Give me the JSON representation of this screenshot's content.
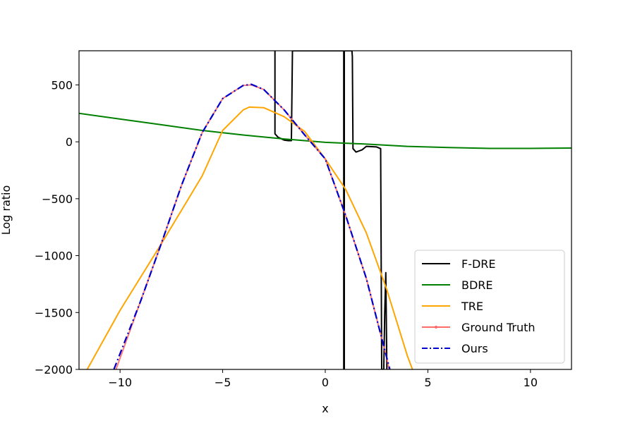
{
  "chart_data": {
    "type": "line",
    "title": "",
    "xlabel": "x",
    "ylabel": "Log ratio",
    "xlim": [
      -12,
      12
    ],
    "ylim": [
      -2000,
      800
    ],
    "xticks": [
      -10,
      -5,
      0,
      5,
      10
    ],
    "yticks": [
      500,
      0,
      -500,
      -1000,
      -1500,
      -2000
    ],
    "xtick_labels": [
      "−10",
      "−5",
      "0",
      "5",
      "10"
    ],
    "ytick_labels": [
      "500",
      "0",
      "−500",
      "−1000",
      "−1500",
      "−2000"
    ],
    "grid": false,
    "legend_position": "lower-right",
    "series": [
      {
        "name": "F-DRE",
        "color": "#000000",
        "style": "solid",
        "points": [
          [
            -2.45,
            800
          ],
          [
            -2.45,
            70
          ],
          [
            -2.3,
            40
          ],
          [
            -2.0,
            15
          ],
          [
            -1.8,
            10
          ],
          [
            -1.65,
            10
          ],
          [
            -1.6,
            800
          ],
          [
            0.9,
            800
          ],
          [
            0.9,
            -2000
          ],
          [
            0.93,
            -2000
          ],
          [
            0.93,
            800
          ],
          [
            1.3,
            800
          ],
          [
            1.32,
            750
          ],
          [
            1.35,
            -60
          ],
          [
            1.5,
            -90
          ],
          [
            1.8,
            -70
          ],
          [
            2.0,
            -40
          ],
          [
            2.5,
            -45
          ],
          [
            2.7,
            -60
          ],
          [
            2.75,
            -2000
          ],
          [
            2.85,
            -2000
          ],
          [
            2.9,
            -1500
          ],
          [
            2.95,
            -1150
          ],
          [
            3.0,
            -2000
          ]
        ]
      },
      {
        "name": "BDRE",
        "color": "#008000",
        "style": "solid",
        "points": [
          [
            -12,
            250
          ],
          [
            -10,
            200
          ],
          [
            -8,
            150
          ],
          [
            -6,
            100
          ],
          [
            -4,
            60
          ],
          [
            -2,
            25
          ],
          [
            0,
            -5
          ],
          [
            2,
            -20
          ],
          [
            4,
            -40
          ],
          [
            6,
            -50
          ],
          [
            8,
            -58
          ],
          [
            10,
            -58
          ],
          [
            12,
            -55
          ]
        ]
      },
      {
        "name": "TRE",
        "color": "#FFA500",
        "style": "solid",
        "points": [
          [
            -11.6,
            -2000
          ],
          [
            -10,
            -1480
          ],
          [
            -8,
            -900
          ],
          [
            -6,
            -300
          ],
          [
            -5,
            100
          ],
          [
            -4,
            280
          ],
          [
            -3.7,
            305
          ],
          [
            -3,
            300
          ],
          [
            -2,
            220
          ],
          [
            -1,
            90
          ],
          [
            0,
            -150
          ],
          [
            1,
            -420
          ],
          [
            2,
            -800
          ],
          [
            3,
            -1300
          ],
          [
            4,
            -1880
          ],
          [
            4.25,
            -2000
          ]
        ]
      },
      {
        "name": "Ground Truth",
        "color": "#FF6B6B",
        "style": "solid-marker",
        "points": [
          [
            -10.2,
            -2000
          ],
          [
            -9,
            -1400
          ],
          [
            -8,
            -900
          ],
          [
            -7,
            -380
          ],
          [
            -6,
            80
          ],
          [
            -5,
            380
          ],
          [
            -4,
            495
          ],
          [
            -3.6,
            500
          ],
          [
            -3,
            460
          ],
          [
            -2,
            280
          ],
          [
            -1,
            60
          ],
          [
            0,
            -150
          ],
          [
            1,
            -650
          ],
          [
            2,
            -1200
          ],
          [
            2.5,
            -1550
          ],
          [
            3,
            -1900
          ],
          [
            3.1,
            -2000
          ]
        ]
      },
      {
        "name": "Ours",
        "color": "#0000CC",
        "style": "dashdot",
        "points": [
          [
            -10.3,
            -2000
          ],
          [
            -9,
            -1400
          ],
          [
            -8,
            -900
          ],
          [
            -7,
            -380
          ],
          [
            -6,
            80
          ],
          [
            -5,
            380
          ],
          [
            -4,
            495
          ],
          [
            -3.6,
            505
          ],
          [
            -3,
            460
          ],
          [
            -2,
            280
          ],
          [
            -1,
            60
          ],
          [
            0,
            -150
          ],
          [
            1,
            -650
          ],
          [
            2,
            -1200
          ],
          [
            2.5,
            -1550
          ],
          [
            3,
            -1900
          ],
          [
            3.15,
            -2000
          ]
        ]
      }
    ]
  }
}
